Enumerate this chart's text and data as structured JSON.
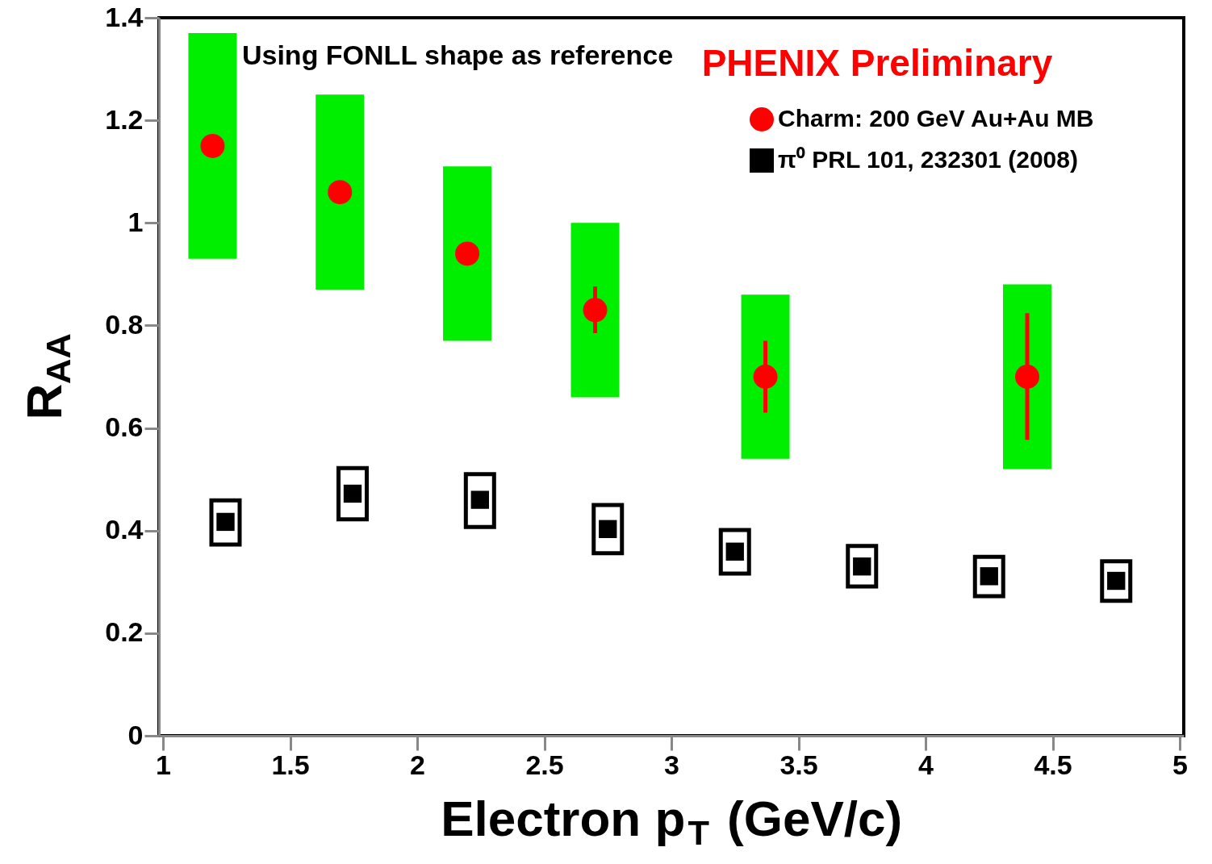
{
  "chart_data": {
    "type": "scatter",
    "xlabel": "Electron p$_{T}$ (GeV/c)",
    "ylabel": "R$_{AA}$",
    "annotations": [
      "Using FONLL shape as reference",
      "PHENIX Preliminary"
    ],
    "xlim": [
      1,
      5
    ],
    "xticks": [
      1,
      1.5,
      2,
      2.5,
      3,
      3.5,
      4,
      4.5,
      5
    ],
    "ylim": [
      0,
      1.4
    ],
    "yticks": [
      0,
      0.2,
      0.4,
      0.6,
      0.8,
      1,
      1.2,
      1.4
    ],
    "legend": "top right",
    "grid": false,
    "series": [
      {
        "type": "bar",
        "color": "#00ee00",
        "x": [
          1.195,
          1.696,
          2.197,
          2.7,
          3.37,
          4.4
        ],
        "base": [
          0.93,
          0.87,
          0.77,
          0.66,
          0.54,
          0.52
        ],
        "values": [
          0.44,
          0.38,
          0.34,
          0.34,
          0.32,
          0.36
        ]
      },
      {
        "type": "bar",
        "color": "#000000",
        "x": [
          1.246,
          1.746,
          2.247,
          2.75,
          3.25,
          3.75,
          4.25,
          4.75
        ],
        "base": [
          0.373,
          0.422,
          0.407,
          0.356,
          0.316,
          0.291,
          0.272,
          0.263
        ],
        "values": [
          0.086,
          0.1,
          0.103,
          0.094,
          0.085,
          0.079,
          0.077,
          0.077
        ]
      },
      {
        "type": "scatter",
        "name": "Charm: 200 GeV Au+Au MB",
        "color": "#ff0000",
        "marker": "circle",
        "x": [
          1.195,
          1.696,
          2.197,
          2.7,
          3.37,
          4.4
        ],
        "values": [
          1.15,
          1.06,
          0.94,
          0.83,
          0.7,
          0.7
        ],
        "errors": [
          null,
          null,
          null,
          [
            0.785,
            0.876
          ],
          [
            0.63,
            0.77
          ],
          [
            0.577,
            0.824
          ]
        ]
      },
      {
        "type": "scatter",
        "name": "π⁰ PRL 101, 232301 (2008)",
        "color": "#000000",
        "marker": "square",
        "x": [
          1.246,
          1.746,
          2.247,
          2.75,
          3.25,
          3.75,
          4.25,
          4.75
        ],
        "values": [
          0.417,
          0.472,
          0.46,
          0.403,
          0.359,
          0.33,
          0.311,
          0.302
        ]
      }
    ]
  }
}
